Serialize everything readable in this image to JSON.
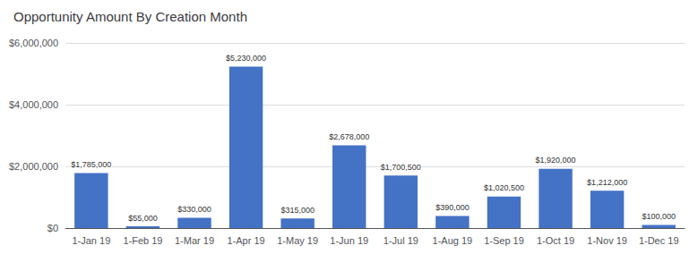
{
  "chart_data": {
    "type": "bar",
    "title": "Opportunity Amount By Creation Month",
    "categories": [
      "1-Jan 19",
      "1-Feb 19",
      "1-Mar 19",
      "1-Apr 19",
      "1-May 19",
      "1-Jun 19",
      "1-Jul 19",
      "1-Aug 19",
      "1-Sep 19",
      "1-Oct 19",
      "1-Nov 19",
      "1-Dec 19"
    ],
    "values": [
      1785000,
      55000,
      330000,
      5230000,
      315000,
      2678000,
      1700500,
      390000,
      1020500,
      1920000,
      1212000,
      100000
    ],
    "value_labels": [
      "$1,785,000",
      "$55,000",
      "$330,000",
      "$5,230,000",
      "$315,000",
      "$2,678,000",
      "$1,700,500",
      "$390,000",
      "$1,020,500",
      "$1,920,000",
      "$1,212,000",
      "$100,000"
    ],
    "color": "#4472C4",
    "ylim": [
      0,
      6000000
    ],
    "yticks": [
      {
        "value": 0,
        "label": "$0"
      },
      {
        "value": 2000000,
        "label": "$2,000,000"
      },
      {
        "value": 4000000,
        "label": "$4,000,000"
      },
      {
        "value": 6000000,
        "label": "$6,000,000"
      }
    ],
    "grid": true,
    "data_labels": true
  }
}
